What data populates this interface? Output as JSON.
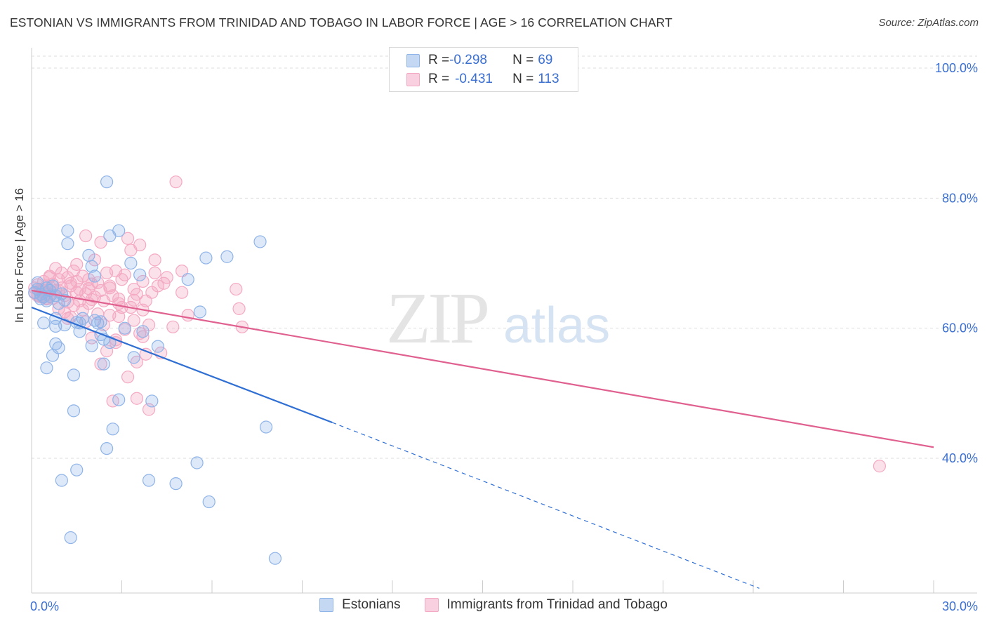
{
  "header": {
    "title": "ESTONIAN VS IMMIGRANTS FROM TRINIDAD AND TOBAGO IN LABOR FORCE | AGE > 16 CORRELATION CHART",
    "source": "Source: ZipAtlas.com"
  },
  "watermark": {
    "zip": "ZIP",
    "atlas": "atlas"
  },
  "legend": {
    "rows": [
      {
        "r_label": "R = ",
        "r_value": "-0.298",
        "n_label": "N = ",
        "n_value": "69"
      },
      {
        "r_label": "R = ",
        "r_value": "-0.431",
        "n_label": "N = ",
        "n_value": "113"
      }
    ]
  },
  "bottom_legend": {
    "series1": "Estonians",
    "series2": "Immigrants from Trinidad and Tobago"
  },
  "chart_data": {
    "type": "scatter",
    "title": "ESTONIAN VS IMMIGRANTS FROM TRINIDAD AND TOBAGO IN LABOR FORCE | AGE > 16 CORRELATION CHART",
    "xlabel": "",
    "ylabel": "In Labor Force | Age > 16",
    "xlim": [
      0,
      30
    ],
    "ylim": [
      20,
      100
    ],
    "x_tick_labels": [
      "0.0%",
      "30.0%"
    ],
    "y_ticks": [
      40,
      60,
      80,
      100
    ],
    "y_tick_labels": [
      "40.0%",
      "60.0%",
      "80.0%",
      "100.0%"
    ],
    "grid": true,
    "colors": {
      "series1": "#8fb4e8",
      "series1_line": "#2f6fd4",
      "series2": "#f4a9c3",
      "series2_line": "#e0608f",
      "tick_text": "#3b6fd1"
    },
    "series": [
      {
        "name": "Estonians",
        "R": -0.298,
        "N": 69,
        "trend": {
          "x0": 0,
          "y0": 63.2,
          "x1": 10,
          "y1": 45.5,
          "dash_to_x": 24.2,
          "dash_to_y": 20.0
        },
        "points": [
          [
            0.1,
            65.5
          ],
          [
            0.2,
            66
          ],
          [
            0.3,
            64.5
          ],
          [
            0.3,
            65.2
          ],
          [
            0.4,
            64.8
          ],
          [
            0.5,
            66.2
          ],
          [
            0.5,
            64.2
          ],
          [
            0.6,
            65.8
          ],
          [
            0.7,
            66.5
          ],
          [
            0.8,
            65
          ],
          [
            0.9,
            63.8
          ],
          [
            1.0,
            65.3
          ],
          [
            1.1,
            64.3
          ],
          [
            0.2,
            67
          ],
          [
            0.4,
            60.8
          ],
          [
            0.5,
            53.9
          ],
          [
            0.7,
            55.8
          ],
          [
            0.8,
            57.6
          ],
          [
            0.9,
            57
          ],
          [
            0.8,
            61.5
          ],
          [
            0.8,
            60.3
          ],
          [
            1.1,
            60.5
          ],
          [
            1.0,
            36.6
          ],
          [
            1.2,
            75
          ],
          [
            1.2,
            73
          ],
          [
            1.3,
            27.8
          ],
          [
            1.4,
            52.8
          ],
          [
            1.4,
            47.3
          ],
          [
            1.5,
            38.2
          ],
          [
            1.6,
            59.5
          ],
          [
            1.6,
            60.8
          ],
          [
            1.7,
            61.5
          ],
          [
            1.9,
            71.2
          ],
          [
            2.0,
            69.5
          ],
          [
            2.0,
            57.3
          ],
          [
            2.1,
            68
          ],
          [
            2.1,
            61.2
          ],
          [
            2.2,
            60.8
          ],
          [
            2.3,
            61
          ],
          [
            2.3,
            59
          ],
          [
            2.4,
            58.3
          ],
          [
            2.4,
            54.5
          ],
          [
            2.5,
            82.5
          ],
          [
            2.5,
            41.5
          ],
          [
            2.6,
            74.2
          ],
          [
            2.6,
            57.8
          ],
          [
            2.7,
            44.5
          ],
          [
            2.9,
            75
          ],
          [
            2.9,
            49
          ],
          [
            3.1,
            60
          ],
          [
            3.3,
            70
          ],
          [
            3.4,
            55.5
          ],
          [
            3.6,
            68.2
          ],
          [
            3.7,
            59.5
          ],
          [
            3.9,
            36.6
          ],
          [
            4.0,
            48.8
          ],
          [
            4.2,
            57.2
          ],
          [
            4.8,
            36.1
          ],
          [
            5.2,
            67.5
          ],
          [
            5.5,
            39.3
          ],
          [
            5.6,
            62.5
          ],
          [
            5.8,
            70.8
          ],
          [
            5.9,
            33.3
          ],
          [
            6.5,
            71
          ],
          [
            7.6,
            73.3
          ],
          [
            7.8,
            44.8
          ],
          [
            8.1,
            24.6
          ],
          [
            1.5,
            60.9
          ],
          [
            0.6,
            64.9
          ]
        ]
      },
      {
        "name": "Immigrants from Trinidad and Tobago",
        "R": -0.431,
        "N": 113,
        "trend": {
          "x0": 0,
          "y0": 65.8,
          "x1": 30,
          "y1": 41.7
        },
        "points": [
          [
            0.1,
            66.2
          ],
          [
            0.1,
            65.4
          ],
          [
            0.2,
            66.7
          ],
          [
            0.2,
            65
          ],
          [
            0.3,
            64.8
          ],
          [
            0.3,
            66
          ],
          [
            0.4,
            65.5
          ],
          [
            0.4,
            67.2
          ],
          [
            0.5,
            64.5
          ],
          [
            0.5,
            66.5
          ],
          [
            0.6,
            65.2
          ],
          [
            0.6,
            68
          ],
          [
            0.7,
            66.8
          ],
          [
            0.7,
            64.6
          ],
          [
            0.8,
            69.2
          ],
          [
            0.8,
            65.8
          ],
          [
            0.9,
            67.5
          ],
          [
            0.9,
            63
          ],
          [
            1.0,
            66.2
          ],
          [
            1.0,
            68.5
          ],
          [
            1.1,
            62.5
          ],
          [
            1.1,
            65
          ],
          [
            1.2,
            67.8
          ],
          [
            1.2,
            64
          ],
          [
            1.3,
            66.5
          ],
          [
            1.3,
            61.7
          ],
          [
            1.4,
            68.8
          ],
          [
            1.4,
            63.5
          ],
          [
            1.5,
            65.5
          ],
          [
            1.5,
            67.2
          ],
          [
            1.6,
            64.2
          ],
          [
            1.6,
            66
          ],
          [
            1.7,
            62.8
          ],
          [
            1.7,
            68
          ],
          [
            1.8,
            65.3
          ],
          [
            1.8,
            61
          ],
          [
            1.9,
            67.5
          ],
          [
            1.9,
            63.8
          ],
          [
            2.0,
            66.8
          ],
          [
            2.0,
            58.5
          ],
          [
            2.1,
            64.8
          ],
          [
            2.1,
            70.5
          ],
          [
            2.2,
            62.2
          ],
          [
            2.2,
            67
          ],
          [
            2.3,
            65.8
          ],
          [
            2.3,
            73.2
          ],
          [
            2.4,
            64.2
          ],
          [
            2.4,
            60.5
          ],
          [
            2.5,
            68.5
          ],
          [
            2.5,
            56.5
          ],
          [
            2.6,
            62
          ],
          [
            2.6,
            66.5
          ],
          [
            2.7,
            48.8
          ],
          [
            2.7,
            65
          ],
          [
            2.8,
            68.8
          ],
          [
            2.8,
            58.2
          ],
          [
            2.9,
            61.8
          ],
          [
            2.9,
            64.5
          ],
          [
            3.0,
            63.2
          ],
          [
            3.0,
            67.5
          ],
          [
            3.1,
            59.8
          ],
          [
            3.1,
            68.2
          ],
          [
            3.2,
            73.8
          ],
          [
            3.2,
            52.5
          ],
          [
            3.3,
            63.2
          ],
          [
            3.3,
            72
          ],
          [
            3.4,
            66
          ],
          [
            3.4,
            61.2
          ],
          [
            3.5,
            65.2
          ],
          [
            3.5,
            54.8
          ],
          [
            3.6,
            59.2
          ],
          [
            3.6,
            72.8
          ],
          [
            3.7,
            67.2
          ],
          [
            3.7,
            62.8
          ],
          [
            3.8,
            64.2
          ],
          [
            3.8,
            56
          ],
          [
            3.9,
            47.5
          ],
          [
            3.9,
            60.5
          ],
          [
            4.0,
            65.5
          ],
          [
            4.1,
            68.5
          ],
          [
            4.1,
            70.5
          ],
          [
            4.2,
            66.5
          ],
          [
            4.3,
            56.2
          ],
          [
            4.5,
            67.8
          ],
          [
            4.7,
            60.2
          ],
          [
            4.8,
            82.5
          ],
          [
            5.0,
            65.5
          ],
          [
            5.0,
            68.8
          ],
          [
            5.2,
            62
          ],
          [
            6.8,
            66
          ],
          [
            6.9,
            63
          ],
          [
            7.0,
            60.2
          ],
          [
            28.2,
            38.8
          ],
          [
            1.8,
            74.2
          ],
          [
            2.3,
            54.5
          ],
          [
            3.5,
            49.2
          ],
          [
            2.8,
            57.8
          ],
          [
            1.2,
            61.5
          ],
          [
            0.6,
            67.8
          ],
          [
            0.9,
            65.8
          ],
          [
            2.6,
            66.2
          ],
          [
            1.5,
            69.8
          ],
          [
            3.7,
            58.7
          ],
          [
            0.3,
            65.7
          ],
          [
            0.5,
            64.6
          ],
          [
            1.3,
            66.9
          ],
          [
            2.0,
            64.4
          ],
          [
            3.4,
            64.3
          ],
          [
            1.9,
            66.1
          ],
          [
            2.9,
            63.8
          ],
          [
            0.2,
            65.1
          ],
          [
            0.4,
            65.9
          ],
          [
            4.4,
            66.9
          ]
        ]
      }
    ]
  }
}
